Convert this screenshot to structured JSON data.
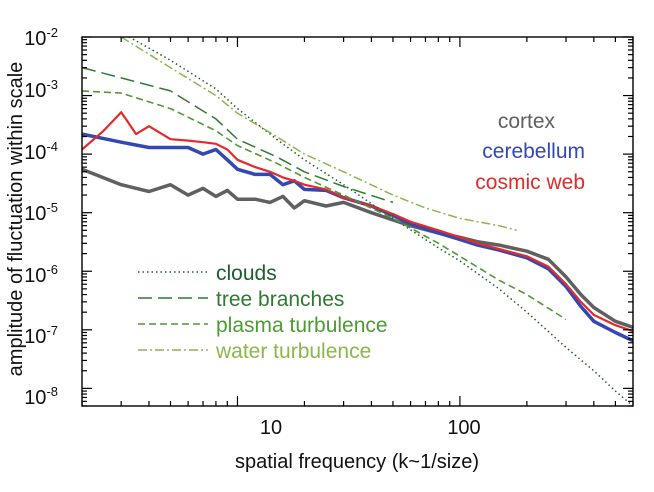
{
  "chart_data": {
    "type": "line",
    "xlabel": "spatial frequency (k~1/size)",
    "ylabel": "amplitude of fluctuation within scale",
    "x_scale": "log",
    "y_scale": "log",
    "xlim": [
      2,
      600
    ],
    "ylim": [
      5e-09,
      0.01
    ],
    "x_tick_labels": [
      "10",
      "100"
    ],
    "y_tick_labels": [
      {
        "base": "10",
        "exp": "-2"
      },
      {
        "base": "10",
        "exp": "-3"
      },
      {
        "base": "10",
        "exp": "-4"
      },
      {
        "base": "10",
        "exp": "-5"
      },
      {
        "base": "10",
        "exp": "-6"
      },
      {
        "base": "10",
        "exp": "-7"
      },
      {
        "base": "10",
        "exp": "-8"
      }
    ],
    "grid": false,
    "legend_top": {
      "placement": "right",
      "entries": [
        {
          "label": "cortex",
          "color": "#606060"
        },
        {
          "label": "cerebellum",
          "color": "#3448b4"
        },
        {
          "label": "cosmic web",
          "color": "#e52a2a"
        }
      ]
    },
    "legend_bottom": {
      "placement": "bottom-left",
      "entries": [
        {
          "label": "clouds",
          "color": "#1d5e2a",
          "dash": "dotted"
        },
        {
          "label": "tree branches",
          "color": "#2f7a32",
          "dash": "long-dash"
        },
        {
          "label": "plasma turbulence",
          "color": "#4e9a33",
          "dash": "dash"
        },
        {
          "label": "water turbulence",
          "color": "#8ab84a",
          "dash": "dash-dot"
        }
      ]
    },
    "series": [
      {
        "name": "cortex",
        "color": "#606060",
        "width": 3.5,
        "dash": "solid",
        "x": [
          2,
          3,
          4,
          5,
          6,
          7,
          8,
          9,
          10,
          12,
          14,
          16,
          18,
          20,
          25,
          30,
          40,
          50,
          60,
          80,
          100,
          120,
          150,
          200,
          250,
          300,
          350,
          400,
          500,
          600
        ],
        "y": [
          5.5e-05,
          3e-05,
          2.3e-05,
          3e-05,
          2e-05,
          2.6e-05,
          1.9e-05,
          2.4e-05,
          1.7e-05,
          1.7e-05,
          1.5e-05,
          1.9e-05,
          1.2e-05,
          1.6e-05,
          1.3e-05,
          1.5e-05,
          1e-05,
          7.5e-06,
          6e-06,
          4.5e-06,
          3.8e-06,
          3.2e-06,
          2.8e-06,
          2.2e-06,
          1.6e-06,
          8e-07,
          4e-07,
          2.4e-07,
          1.4e-07,
          1.1e-07
        ]
      },
      {
        "name": "cerebellum",
        "color": "#3448b4",
        "width": 3.5,
        "dash": "solid",
        "x": [
          2,
          3,
          4,
          5,
          6,
          7,
          8,
          9,
          10,
          12,
          14,
          16,
          18,
          20,
          25,
          30,
          40,
          50,
          60,
          80,
          100,
          120,
          150,
          200,
          250,
          300,
          350,
          400,
          500,
          600
        ],
        "y": [
          0.00022,
          0.00016,
          0.00013,
          0.00013,
          0.00013,
          0.0001,
          0.00012,
          8e-05,
          5.5e-05,
          4.5e-05,
          4.5e-05,
          3e-05,
          3.5e-05,
          2.5e-05,
          2.4e-05,
          1.8e-05,
          1.3e-05,
          9e-06,
          6.5e-06,
          4.5e-06,
          3.5e-06,
          2.8e-06,
          2.3e-06,
          1.7e-06,
          1.1e-06,
          5.5e-07,
          2.5e-07,
          1.4e-07,
          9e-08,
          6.5e-08
        ]
      },
      {
        "name": "cosmic web",
        "color": "#e52a2a",
        "width": 2.2,
        "dash": "solid",
        "x": [
          2,
          2.5,
          3,
          3.5,
          4,
          5,
          6,
          7,
          8,
          9,
          10,
          12,
          14,
          16,
          18,
          20,
          25,
          30,
          40,
          50,
          60,
          80,
          100,
          120,
          150,
          200,
          250,
          300,
          350,
          400,
          500,
          600
        ],
        "y": [
          0.00012,
          0.00025,
          0.00052,
          0.00022,
          0.0003,
          0.00018,
          0.00017,
          0.00016,
          0.00015,
          0.00012,
          8e-05,
          6e-05,
          5e-05,
          4e-05,
          3.5e-05,
          3e-05,
          2.5e-05,
          1.8e-05,
          1.3e-05,
          9.5e-06,
          7e-06,
          5e-06,
          3.8e-06,
          3e-06,
          2.4e-06,
          1.8e-06,
          1.2e-06,
          6e-07,
          3e-07,
          1.8e-07,
          1.2e-07,
          9.5e-08
        ]
      },
      {
        "name": "clouds",
        "color": "#1d5e2a",
        "width": 1.5,
        "dash": "1.5 3",
        "x": [
          3,
          5,
          8,
          10,
          15,
          20,
          30,
          50,
          80,
          100,
          150,
          200,
          300,
          400,
          500,
          600
        ],
        "y": [
          0.012,
          0.004,
          0.0013,
          0.0006,
          0.00018,
          8e-05,
          3e-05,
          8e-06,
          2.5e-06,
          1.5e-06,
          5e-07,
          2e-07,
          5e-08,
          2e-08,
          9e-09,
          5e-09
        ]
      },
      {
        "name": "tree branches",
        "color": "#2f7a32",
        "width": 1.5,
        "dash": "14 6",
        "x": [
          2,
          3,
          5,
          8,
          10,
          15,
          20,
          30,
          50
        ],
        "y": [
          0.003,
          0.002,
          0.0012,
          0.0004,
          0.00018,
          9e-05,
          5e-05,
          2.8e-05,
          1.5e-05
        ]
      },
      {
        "name": "plasma turbulence",
        "color": "#4e9a33",
        "width": 1.6,
        "dash": "7 4",
        "x": [
          2,
          3,
          5,
          8,
          10,
          15,
          20,
          30,
          50,
          80,
          100,
          150,
          200,
          300
        ],
        "y": [
          0.0012,
          0.0011,
          0.0006,
          0.00025,
          0.00014,
          7e-05,
          4e-05,
          2e-05,
          8e-06,
          3e-06,
          1.8e-06,
          7e-07,
          4e-07,
          1.5e-07
        ]
      },
      {
        "name": "water turbulence",
        "color": "#8ab84a",
        "width": 1.5,
        "dash": "9 3 2 3",
        "x": [
          3,
          5,
          8,
          10,
          15,
          20,
          30,
          50,
          70,
          100,
          150,
          180
        ],
        "y": [
          0.01,
          0.003,
          0.001,
          0.0005,
          0.0002,
          0.0001,
          5e-05,
          2e-05,
          1.2e-05,
          8e-06,
          6e-06,
          5e-06
        ]
      }
    ]
  }
}
